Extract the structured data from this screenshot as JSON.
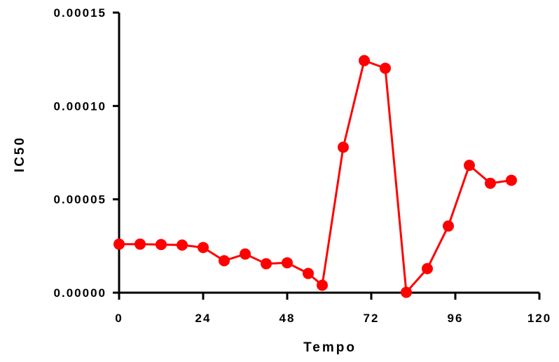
{
  "chart_data": {
    "type": "line",
    "title": "",
    "xlabel": "Tempo",
    "ylabel": "IC50",
    "xlim": [
      0,
      120
    ],
    "ylim": [
      0,
      0.00015
    ],
    "x_ticks": [
      0,
      24,
      48,
      72,
      96,
      120
    ],
    "x_tick_labels": [
      "0",
      "24",
      "48",
      "72",
      "96",
      "120"
    ],
    "y_ticks": [
      0,
      5e-05,
      0.0001,
      0.00015
    ],
    "y_tick_labels": [
      "0.00000",
      "0.00005",
      "0.00010",
      "0.00015"
    ],
    "grid": false,
    "legend": false,
    "series": [
      {
        "color": "#ff0000",
        "marker": "circle",
        "x": [
          0,
          6,
          12,
          18,
          24,
          30,
          36,
          42,
          48,
          54,
          58,
          64,
          70,
          76,
          82,
          88,
          94,
          100,
          106,
          112
        ],
        "y": [
          2.6e-05,
          2.6e-05,
          2.58e-05,
          2.55e-05,
          2.42e-05,
          1.71e-05,
          2.07e-05,
          1.55e-05,
          1.6e-05,
          1.03e-05,
          4e-06,
          7.79e-05,
          0.0001243,
          0.0001202,
          2e-07,
          1.29e-05,
          3.57e-05,
          6.82e-05,
          5.86e-05,
          6.02e-05
        ]
      }
    ]
  }
}
